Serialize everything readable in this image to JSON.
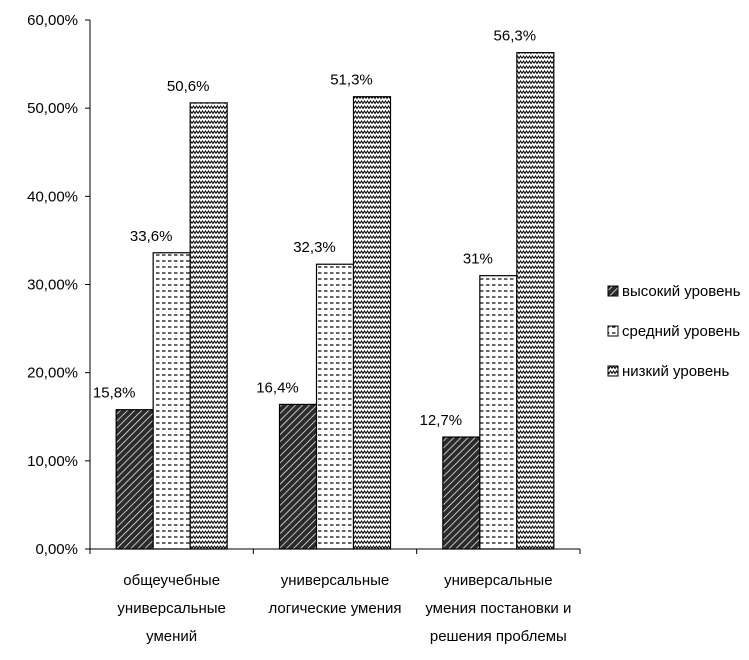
{
  "chart_data": {
    "type": "bar",
    "categories": [
      [
        "общеучебные",
        "универсальные",
        "умений"
      ],
      [
        "универсальные",
        "логические умения"
      ],
      [
        "универсальные",
        "умения постановки и",
        "решения проблемы"
      ]
    ],
    "series": [
      {
        "name": "высокий уровень",
        "values": [
          15.8,
          16.4,
          12.7
        ],
        "labels": [
          "15,8%",
          "16,4%",
          "12,7%"
        ],
        "pattern": "diagonal-hatch"
      },
      {
        "name": "средний уровень",
        "values": [
          33.6,
          32.3,
          31.0
        ],
        "labels": [
          "33,6%",
          "32,3%",
          "31%"
        ],
        "pattern": "dashes"
      },
      {
        "name": "низкий уровень",
        "values": [
          50.6,
          51.3,
          56.3
        ],
        "labels": [
          "50,6%",
          "51,3%",
          "56,3%"
        ],
        "pattern": "zigzag"
      }
    ],
    "yticks": [
      0,
      10,
      20,
      30,
      40,
      50,
      60
    ],
    "ytick_labels": [
      "0,00%",
      "10,00%",
      "20,00%",
      "30,00%",
      "40,00%",
      "50,00%",
      "60,00%"
    ],
    "ylim": [
      0,
      60
    ],
    "title": "",
    "xlabel": "",
    "ylabel": "",
    "grid": false,
    "legend_position": "right"
  }
}
